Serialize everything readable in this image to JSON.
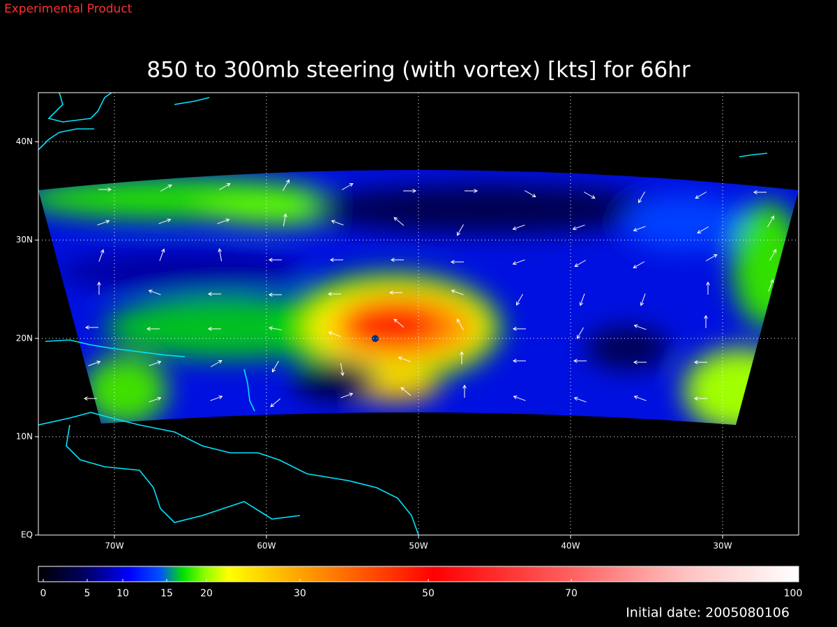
{
  "header": {
    "label": "Experimental Product"
  },
  "title": "850 to 300mb steering (with vortex) [kts] for 66hr",
  "map": {
    "xlim": [
      -75,
      -25
    ],
    "ylim": [
      0,
      45
    ],
    "xticks": [
      {
        "value": -70,
        "label": "70W"
      },
      {
        "value": -60,
        "label": "60W"
      },
      {
        "value": -50,
        "label": "50W"
      },
      {
        "value": -40,
        "label": "40W"
      },
      {
        "value": -30,
        "label": "30W"
      }
    ],
    "yticks": [
      {
        "value": 0,
        "label": "EQ"
      },
      {
        "value": 10,
        "label": "10N"
      },
      {
        "value": 20,
        "label": "20N"
      },
      {
        "value": 30,
        "label": "30N"
      },
      {
        "value": 40,
        "label": "40N"
      }
    ]
  },
  "colorbar": {
    "ticks": [
      0,
      5,
      10,
      15,
      20,
      30,
      50,
      70,
      100
    ]
  },
  "footer": {
    "label": "Initial date: 2005080106"
  }
}
